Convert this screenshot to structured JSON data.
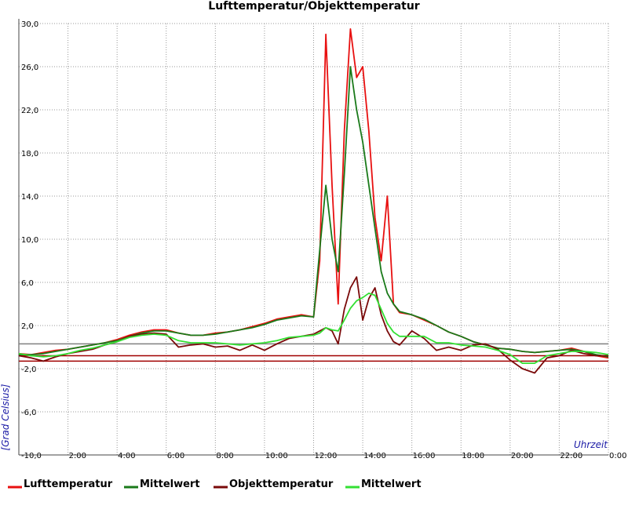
{
  "chart_data": {
    "type": "line",
    "title": "Lufttemperatur/Objekttemperatur",
    "y_label": "[Grad Celsius]",
    "x_label": "Uhrzeit",
    "xlim": [
      0,
      24
    ],
    "ylim": [
      -10,
      30
    ],
    "xticks": [
      {
        "value": 2,
        "label": "2:00"
      },
      {
        "value": 4,
        "label": "4:00"
      },
      {
        "value": 6,
        "label": "6:00"
      },
      {
        "value": 8,
        "label": "8:00"
      },
      {
        "value": 10,
        "label": "10:00"
      },
      {
        "value": 12,
        "label": "12:00"
      },
      {
        "value": 14,
        "label": "14:00"
      },
      {
        "value": 16,
        "label": "16:00"
      },
      {
        "value": 18,
        "label": "18:00"
      },
      {
        "value": 20,
        "label": "20:00"
      },
      {
        "value": 22,
        "label": "22:00"
      },
      {
        "value": 24,
        "label": "0:00"
      }
    ],
    "yticks": [
      {
        "value": -10,
        "label": "-10,0"
      },
      {
        "value": -6,
        "label": "-6,0"
      },
      {
        "value": -2,
        "label": "-2,0"
      },
      {
        "value": 2,
        "label": "2,0"
      },
      {
        "value": 6,
        "label": "6,0"
      },
      {
        "value": 10,
        "label": "10,0"
      },
      {
        "value": 14,
        "label": "14,0"
      },
      {
        "value": 18,
        "label": "18,0"
      },
      {
        "value": 22,
        "label": "22,0"
      },
      {
        "value": 26,
        "label": "26,0"
      },
      {
        "value": 30,
        "label": "30,0"
      }
    ],
    "grid": true,
    "hlines": [
      {
        "value": 0.3,
        "color": "#808080"
      },
      {
        "value": -0.8,
        "color": "#a00000"
      },
      {
        "value": -1.3,
        "color": "#a00000"
      }
    ],
    "x": [
      0,
      0.5,
      1,
      1.5,
      2,
      2.5,
      3,
      3.5,
      4,
      4.5,
      5,
      5.5,
      6,
      6.5,
      7,
      7.5,
      8,
      8.5,
      9,
      9.5,
      10,
      10.5,
      11,
      11.5,
      12,
      12.25,
      12.5,
      12.75,
      13,
      13.25,
      13.5,
      13.75,
      14,
      14.25,
      14.5,
      14.75,
      15,
      15.25,
      15.5,
      16,
      16.5,
      17,
      17.5,
      18,
      18.5,
      19,
      19.5,
      20,
      20.5,
      21,
      21.5,
      22,
      22.5,
      23,
      23.5,
      24
    ],
    "series": [
      {
        "name": "Lufttemperatur",
        "color": "#e81010",
        "values": [
          -0.6,
          -0.7,
          -0.5,
          -0.3,
          -0.2,
          0,
          0.2,
          0.4,
          0.7,
          1.1,
          1.4,
          1.6,
          1.6,
          1.3,
          1.1,
          1.1,
          1.3,
          1.4,
          1.6,
          1.9,
          2.2,
          2.6,
          2.8,
          3.0,
          2.8,
          8,
          29,
          15,
          4,
          20,
          29.5,
          25,
          26,
          20,
          12,
          8,
          14,
          4,
          3.2,
          3.0,
          2.5,
          2.0,
          1.4,
          1.0,
          0.5,
          0.2,
          -0.1,
          -0.2,
          -0.4,
          -0.5,
          -0.4,
          -0.3,
          -0.1,
          -0.4,
          -0.8,
          -1.0
        ]
      },
      {
        "name": "Mittelwert",
        "color": "#1a7a1a",
        "values": [
          -0.7,
          -0.7,
          -0.6,
          -0.4,
          -0.2,
          0,
          0.2,
          0.4,
          0.6,
          1.0,
          1.3,
          1.5,
          1.5,
          1.3,
          1.1,
          1.1,
          1.2,
          1.4,
          1.6,
          1.8,
          2.1,
          2.5,
          2.7,
          2.9,
          2.8,
          9,
          15,
          10,
          7,
          16,
          26,
          22,
          19,
          15,
          11,
          7,
          5,
          4,
          3.3,
          3.0,
          2.6,
          2.0,
          1.4,
          1.0,
          0.5,
          0.2,
          -0.1,
          -0.2,
          -0.4,
          -0.5,
          -0.4,
          -0.3,
          -0.2,
          -0.4,
          -0.7,
          -0.9
        ]
      },
      {
        "name": "Objekttemperatur",
        "color": "#7a0a0a",
        "values": [
          -0.8,
          -1.0,
          -1.3,
          -0.9,
          -0.6,
          -0.4,
          -0.2,
          0.2,
          0.5,
          1.0,
          1.2,
          1.3,
          1.2,
          0.0,
          0.2,
          0.3,
          0.0,
          0.1,
          -0.3,
          0.2,
          -0.3,
          0.3,
          0.8,
          1.0,
          1.2,
          1.5,
          1.8,
          1.5,
          0.3,
          3.5,
          5.5,
          6.5,
          2.5,
          4.5,
          5.5,
          3.0,
          1.5,
          0.5,
          0.2,
          1.5,
          0.8,
          -0.3,
          0.0,
          -0.3,
          0.2,
          0.3,
          -0.2,
          -1.2,
          -2.0,
          -2.4,
          -1.0,
          -0.8,
          -0.3,
          -0.6,
          -0.8,
          -0.8
        ]
      },
      {
        "name": "Mittelwert",
        "color": "#33e033",
        "values": [
          -0.6,
          -0.8,
          -0.9,
          -0.8,
          -0.6,
          -0.3,
          -0.1,
          0.2,
          0.5,
          0.9,
          1.1,
          1.2,
          1.1,
          0.6,
          0.4,
          0.4,
          0.4,
          0.3,
          0.2,
          0.3,
          0.4,
          0.6,
          0.9,
          1.0,
          1.1,
          1.3,
          1.8,
          1.6,
          1.5,
          2.5,
          3.6,
          4.3,
          4.6,
          5.0,
          4.8,
          3.5,
          2.2,
          1.4,
          1.0,
          1.0,
          1.0,
          0.4,
          0.4,
          0.2,
          0.1,
          0.0,
          -0.3,
          -0.7,
          -1.5,
          -1.5,
          -0.8,
          -0.6,
          -0.4,
          -0.4,
          -0.5,
          -0.7
        ]
      }
    ]
  }
}
